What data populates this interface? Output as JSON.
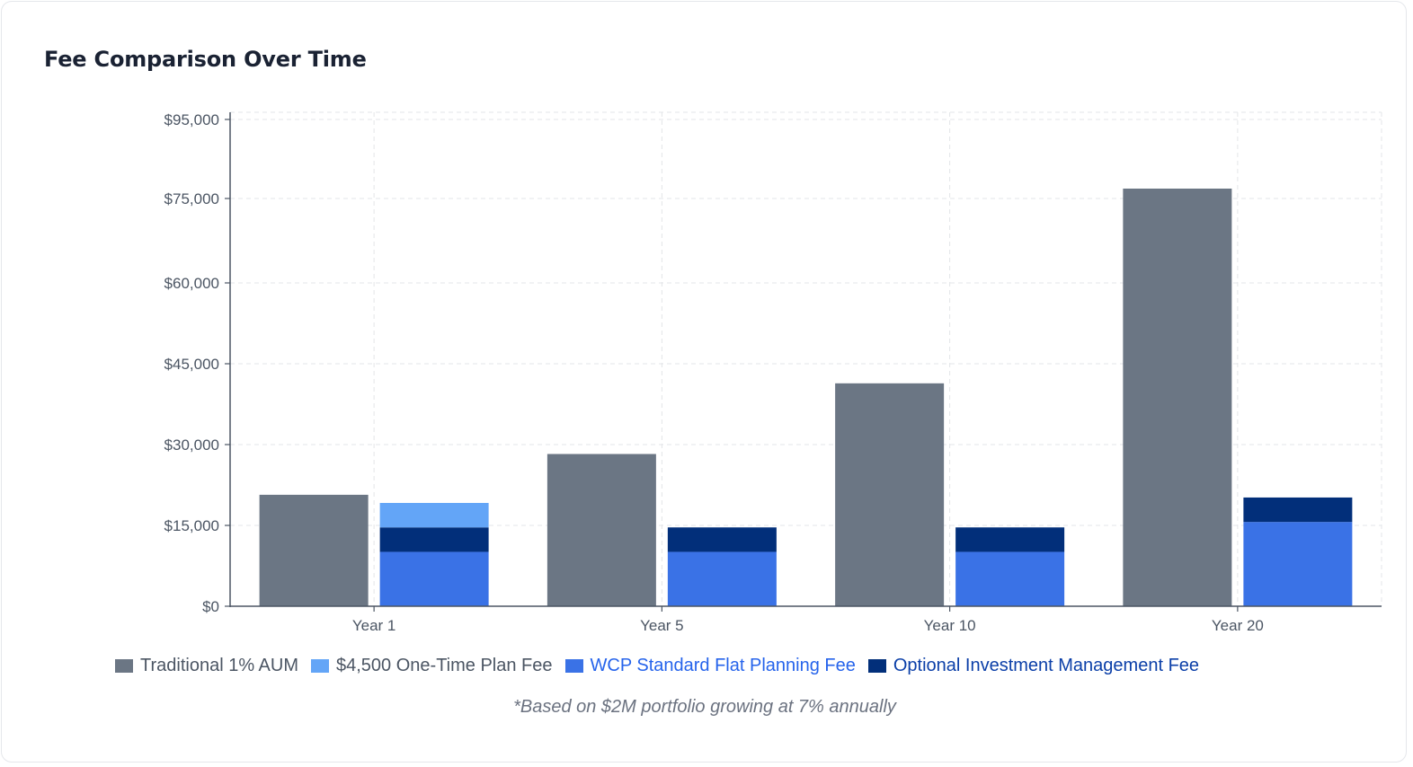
{
  "chart_data": {
    "type": "bar",
    "title": "Fee Comparison Over Time",
    "categories": [
      "Year 1",
      "Year 5",
      "Year 10",
      "Year 20"
    ],
    "y_ticks": [
      "$0",
      "$15,000",
      "$30,000",
      "$45,000",
      "$60,000",
      "$75,000",
      "$95,000"
    ],
    "series": [
      {
        "name": "Traditional 1% AUM",
        "stack": "traditional",
        "color": "#6b7684",
        "values": [
          20500,
          28000,
          41000,
          77500
        ]
      },
      {
        "name": "$4,500 One-Time Plan Fee",
        "stack": "wcp",
        "color": "#63a5f7",
        "values": [
          4500,
          0,
          0,
          0
        ]
      },
      {
        "name": "WCP Standard Flat Planning Fee",
        "stack": "wcp",
        "color": "#3a72e6",
        "values": [
          10000,
          10000,
          10000,
          15500
        ]
      },
      {
        "name": "Optional Investment Management Fee",
        "stack": "wcp",
        "color": "#022f7a",
        "values": [
          4500,
          4500,
          4500,
          4500
        ]
      }
    ],
    "stack_order_bottom_to_top": [
      "WCP Standard Flat Planning Fee",
      "Optional Investment Management Fee",
      "$4,500 One-Time Plan Fee"
    ],
    "legend_text_colors": [
      "#4b5563",
      "#4b5563",
      "#2563eb",
      "#0b3fa8"
    ],
    "grid": true,
    "legend_position": "bottom",
    "footnote": "*Based on $2M portfolio growing at 7% annually"
  }
}
